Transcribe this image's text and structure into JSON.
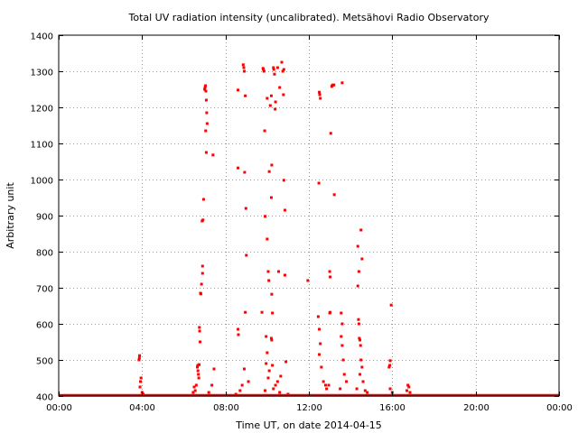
{
  "chart_data": {
    "type": "scatter",
    "title": "Total UV radiation intensity (uncalibrated). Metsähovi Radio Observatory",
    "xlabel": "Time UT, on date 2014-04-15",
    "ylabel": "Arbitrary unit",
    "xlim": [
      0,
      24
    ],
    "ylim": [
      400,
      1400
    ],
    "x_unit": "hours UT",
    "x_ticks": [
      {
        "value": 0,
        "label": "00:00"
      },
      {
        "value": 4,
        "label": "04:00"
      },
      {
        "value": 8,
        "label": "08:00"
      },
      {
        "value": 12,
        "label": "12:00"
      },
      {
        "value": 16,
        "label": "16:00"
      },
      {
        "value": 20,
        "label": "20:00"
      },
      {
        "value": 24,
        "label": "00:00"
      }
    ],
    "y_ticks": [
      400,
      500,
      600,
      700,
      800,
      900,
      1000,
      1100,
      1200,
      1300,
      1400
    ],
    "grid": true,
    "grid_style": "dotted",
    "marker_color": "#ff0000",
    "baseline": {
      "value": 402,
      "x_from": 0,
      "x_to": 24
    },
    "points": [
      [
        3.85,
        500
      ],
      [
        3.87,
        505
      ],
      [
        3.88,
        512
      ],
      [
        3.92,
        440
      ],
      [
        3.95,
        450
      ],
      [
        3.9,
        425
      ],
      [
        4.0,
        410
      ],
      [
        4.05,
        405
      ],
      [
        6.65,
        480
      ],
      [
        6.67,
        485
      ],
      [
        6.68,
        470
      ],
      [
        6.7,
        460
      ],
      [
        6.72,
        450
      ],
      [
        6.74,
        487
      ],
      [
        6.75,
        590
      ],
      [
        6.76,
        580
      ],
      [
        6.78,
        550
      ],
      [
        6.8,
        685
      ],
      [
        6.82,
        683
      ],
      [
        6.85,
        710
      ],
      [
        6.9,
        740
      ],
      [
        6.9,
        760
      ],
      [
        6.88,
        885
      ],
      [
        6.92,
        888
      ],
      [
        6.95,
        945
      ],
      [
        7.0,
        1250
      ],
      [
        7.02,
        1255
      ],
      [
        7.04,
        1260
      ],
      [
        7.06,
        1245
      ],
      [
        7.08,
        1220
      ],
      [
        7.1,
        1185
      ],
      [
        7.12,
        1155
      ],
      [
        7.05,
        1135
      ],
      [
        7.08,
        1075
      ],
      [
        7.4,
        1068
      ],
      [
        7.45,
        475
      ],
      [
        7.35,
        430
      ],
      [
        7.2,
        410
      ],
      [
        6.6,
        430
      ],
      [
        6.55,
        415
      ],
      [
        6.5,
        425
      ],
      [
        6.45,
        410
      ],
      [
        8.6,
        1248
      ],
      [
        8.6,
        1032
      ],
      [
        8.6,
        585
      ],
      [
        8.62,
        570
      ],
      [
        8.85,
        1318
      ],
      [
        8.88,
        1310
      ],
      [
        8.9,
        1300
      ],
      [
        8.92,
        1020
      ],
      [
        8.95,
        1232
      ],
      [
        8.98,
        920
      ],
      [
        9.0,
        790
      ],
      [
        8.95,
        632
      ],
      [
        8.9,
        475
      ],
      [
        8.8,
        430
      ],
      [
        9.1,
        440
      ],
      [
        8.7,
        415
      ],
      [
        8.5,
        405
      ],
      [
        9.8,
        1308
      ],
      [
        9.82,
        1305
      ],
      [
        9.85,
        1300
      ],
      [
        9.88,
        1135
      ],
      [
        9.9,
        898
      ],
      [
        10.0,
        1225
      ],
      [
        10.0,
        835
      ],
      [
        10.05,
        745
      ],
      [
        10.08,
        720
      ],
      [
        9.75,
        632
      ],
      [
        9.95,
        565
      ],
      [
        9.95,
        490
      ],
      [
        10.0,
        520
      ],
      [
        10.1,
        1022
      ],
      [
        10.15,
        1205
      ],
      [
        10.2,
        1232
      ],
      [
        10.22,
        1040
      ],
      [
        10.2,
        950
      ],
      [
        10.22,
        682
      ],
      [
        10.25,
        630
      ],
      [
        10.2,
        560
      ],
      [
        10.22,
        555
      ],
      [
        10.3,
        1310
      ],
      [
        10.32,
        1305
      ],
      [
        10.35,
        1292
      ],
      [
        10.4,
        1215
      ],
      [
        10.38,
        1195
      ],
      [
        10.5,
        1310
      ],
      [
        10.6,
        1255
      ],
      [
        10.55,
        745
      ],
      [
        10.7,
        1325
      ],
      [
        10.75,
        1300
      ],
      [
        10.78,
        1235
      ],
      [
        10.8,
        1305
      ],
      [
        10.8,
        998
      ],
      [
        10.85,
        915
      ],
      [
        10.85,
        735
      ],
      [
        10.9,
        495
      ],
      [
        10.65,
        455
      ],
      [
        10.5,
        440
      ],
      [
        10.4,
        430
      ],
      [
        10.3,
        420
      ],
      [
        10.25,
        485
      ],
      [
        10.1,
        470
      ],
      [
        10.05,
        450
      ],
      [
        9.9,
        415
      ],
      [
        10.6,
        410
      ],
      [
        11.0,
        405
      ],
      [
        11.95,
        720
      ],
      [
        12.5,
        1242
      ],
      [
        12.52,
        1235
      ],
      [
        12.55,
        1225
      ],
      [
        12.48,
        990
      ],
      [
        12.45,
        620
      ],
      [
        12.5,
        585
      ],
      [
        12.55,
        545
      ],
      [
        12.5,
        515
      ],
      [
        12.6,
        480
      ],
      [
        12.7,
        440
      ],
      [
        12.8,
        430
      ],
      [
        12.85,
        420
      ],
      [
        12.95,
        430
      ],
      [
        13.0,
        630
      ],
      [
        13.02,
        632
      ],
      [
        13.0,
        745
      ],
      [
        13.02,
        730
      ],
      [
        13.05,
        1128
      ],
      [
        13.1,
        1258
      ],
      [
        13.12,
        1260
      ],
      [
        13.15,
        1262
      ],
      [
        13.2,
        1262
      ],
      [
        13.22,
        958
      ],
      [
        13.6,
        1268
      ],
      [
        13.55,
        630
      ],
      [
        13.6,
        600
      ],
      [
        13.55,
        565
      ],
      [
        13.6,
        540
      ],
      [
        13.65,
        500
      ],
      [
        13.7,
        460
      ],
      [
        13.8,
        440
      ],
      [
        13.5,
        420
      ],
      [
        14.35,
        815
      ],
      [
        14.4,
        745
      ],
      [
        14.35,
        705
      ],
      [
        14.38,
        612
      ],
      [
        14.4,
        600
      ],
      [
        14.42,
        560
      ],
      [
        14.45,
        555
      ],
      [
        14.48,
        540
      ],
      [
        14.5,
        860
      ],
      [
        14.55,
        780
      ],
      [
        14.5,
        500
      ],
      [
        14.55,
        480
      ],
      [
        14.45,
        460
      ],
      [
        14.6,
        440
      ],
      [
        14.3,
        420
      ],
      [
        14.7,
        415
      ],
      [
        14.8,
        410
      ],
      [
        15.95,
        652
      ],
      [
        15.9,
        498
      ],
      [
        15.88,
        485
      ],
      [
        15.85,
        480
      ],
      [
        15.9,
        420
      ],
      [
        16.0,
        410
      ],
      [
        16.75,
        430
      ],
      [
        16.8,
        425
      ],
      [
        16.85,
        410
      ],
      [
        16.7,
        415
      ]
    ]
  }
}
